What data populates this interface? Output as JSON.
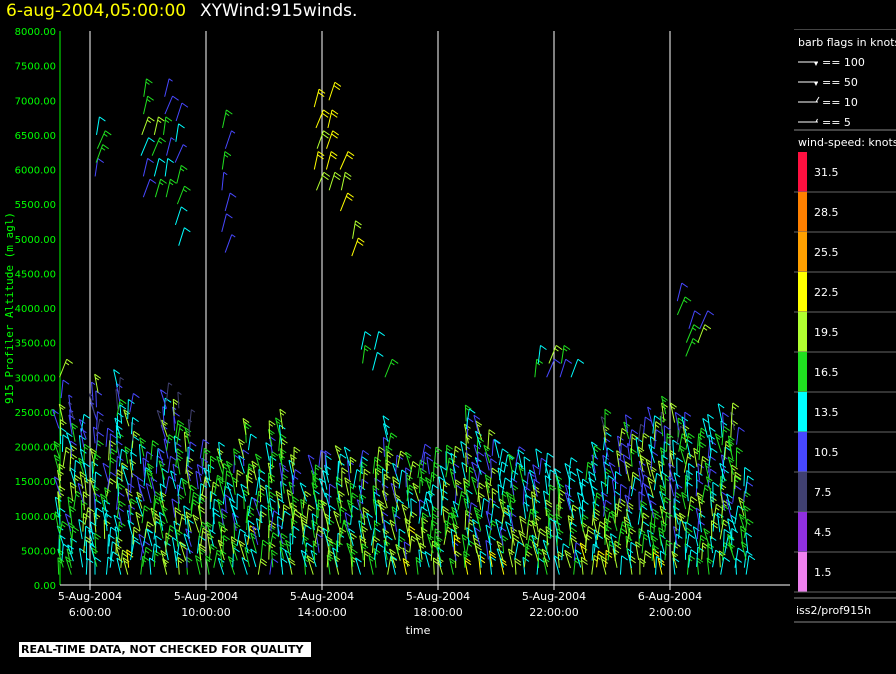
{
  "header": {
    "date": "6-aug-2004,05:00:00",
    "title": "XYWind:915winds."
  },
  "footer": {
    "notice": "REAL-TIME DATA, NOT CHECKED FOR QUALITY"
  },
  "legend": {
    "barb_title": "barb flags in knots",
    "barbs": [
      "== 100",
      "== 50",
      "== 10",
      "== 5"
    ],
    "speed_title": "wind-speed: knots",
    "bins": [
      {
        "label": "31.5",
        "color": "#ff1040"
      },
      {
        "label": "28.5",
        "color": "#ff8000"
      },
      {
        "label": "25.5",
        "color": "#ffa000"
      },
      {
        "label": "22.5",
        "color": "#ffff00"
      },
      {
        "label": "19.5",
        "color": "#b0ff30"
      },
      {
        "label": "16.5",
        "color": "#20e020"
      },
      {
        "label": "13.5",
        "color": "#00ffff"
      },
      {
        "label": "10.5",
        "color": "#4848ff"
      },
      {
        "label": "7.5",
        "color": "#404070"
      },
      {
        "label": "4.5",
        "color": "#9030e0"
      },
      {
        "label": "1.5",
        "color": "#ee80ee"
      }
    ],
    "source": "iss2/prof915h"
  },
  "chart_data": {
    "type": "scatter",
    "subtype": "wind barbs (time-height)",
    "xlabel": "time",
    "ylabel": "915 Profiler Altitude (m agl)",
    "ylim": [
      0,
      8000
    ],
    "yticks": [
      "0.00",
      "500.00",
      "1000.00",
      "1500.00",
      "2000.00",
      "2500.00",
      "3000.00",
      "3500.00",
      "4000.00",
      "4500.00",
      "5000.00",
      "5500.00",
      "6000.00",
      "6500.00",
      "7000.00",
      "7500.00",
      "8000.00"
    ],
    "xticks": [
      {
        "t": 6,
        "line1": "5-Aug-2004",
        "line2": "6:00:00"
      },
      {
        "t": 10,
        "line1": "5-Aug-2004",
        "line2": "10:00:00"
      },
      {
        "t": 14,
        "line1": "5-Aug-2004",
        "line2": "14:00:00"
      },
      {
        "t": 18,
        "line1": "5-Aug-2004",
        "line2": "18:00:00"
      },
      {
        "t": 22,
        "line1": "5-Aug-2004",
        "line2": "22:00:00"
      },
      {
        "t": 26,
        "line1": "6-Aug-2004",
        "line2": "2:00:00"
      }
    ],
    "xlim_hours_since_0000_5aug": [
      4.95,
      29.0
    ],
    "grid": "vertical lines at x ticks",
    "series": [
      {
        "time_h": 5.0,
        "top_m": 2400,
        "upper": [
          2700,
          3000
        ]
      },
      {
        "time_h": 5.4,
        "top_m": 2500,
        "upper": []
      },
      {
        "time_h": 5.8,
        "top_m": 2250,
        "upper": []
      },
      {
        "time_h": 6.2,
        "top_m": 2800,
        "upper": [
          5900,
          6100,
          6300,
          6500
        ]
      },
      {
        "time_h": 6.6,
        "top_m": 2000,
        "upper": []
      },
      {
        "time_h": 7.0,
        "top_m": 2950,
        "upper": []
      },
      {
        "time_h": 7.4,
        "top_m": 2600,
        "upper": []
      },
      {
        "time_h": 7.8,
        "top_m": 1900,
        "upper": [
          5600,
          5900,
          6200,
          6500,
          6800,
          7050
        ]
      },
      {
        "time_h": 8.2,
        "top_m": 1900,
        "upper": [
          5600,
          5900,
          6200,
          6500
        ]
      },
      {
        "time_h": 8.6,
        "top_m": 2700,
        "upper": [
          5600,
          5900,
          6200,
          6500,
          6800,
          7050
        ]
      },
      {
        "time_h": 9.0,
        "top_m": 2600,
        "upper": [
          4900,
          5200,
          5500,
          5800,
          6100,
          6400,
          6700
        ]
      },
      {
        "time_h": 9.4,
        "top_m": 2300,
        "upper": []
      },
      {
        "time_h": 9.8,
        "top_m": 1900,
        "upper": []
      },
      {
        "time_h": 10.2,
        "top_m": 1700,
        "upper": []
      },
      {
        "time_h": 10.6,
        "top_m": 1900,
        "upper": [
          4800,
          5100,
          5400,
          5700,
          6000,
          6300,
          6600
        ]
      },
      {
        "time_h": 11.0,
        "top_m": 1800,
        "upper": []
      },
      {
        "time_h": 11.4,
        "top_m": 2200,
        "upper": []
      },
      {
        "time_h": 11.8,
        "top_m": 1700,
        "upper": []
      },
      {
        "time_h": 12.2,
        "top_m": 2200,
        "upper": []
      },
      {
        "time_h": 12.6,
        "top_m": 2300,
        "upper": []
      },
      {
        "time_h": 13.0,
        "top_m": 1800,
        "upper": []
      },
      {
        "time_h": 13.4,
        "top_m": 1300,
        "upper": []
      },
      {
        "time_h": 13.8,
        "top_m": 1800,
        "upper": [
          5700,
          6000,
          6300,
          6600,
          6900
        ]
      },
      {
        "time_h": 14.2,
        "top_m": 1700,
        "upper": [
          5700,
          6000,
          6300,
          6600,
          7000
        ]
      },
      {
        "time_h": 14.6,
        "top_m": 1800,
        "upper": [
          5400,
          5700,
          6000
        ]
      },
      {
        "time_h": 15.0,
        "top_m": 1800,
        "upper": [
          4750,
          5000
        ]
      },
      {
        "time_h": 15.4,
        "top_m": 1800,
        "upper": [
          3200,
          3400
        ]
      },
      {
        "time_h": 15.8,
        "top_m": 1800,
        "upper": [
          3100,
          3400
        ]
      },
      {
        "time_h": 16.2,
        "top_m": 2200,
        "upper": [
          3000
        ]
      },
      {
        "time_h": 16.6,
        "top_m": 1800,
        "upper": []
      },
      {
        "time_h": 17.0,
        "top_m": 1700,
        "upper": []
      },
      {
        "time_h": 17.4,
        "top_m": 1800,
        "upper": []
      },
      {
        "time_h": 17.8,
        "top_m": 1800,
        "upper": []
      },
      {
        "time_h": 18.2,
        "top_m": 1800,
        "upper": []
      },
      {
        "time_h": 18.6,
        "top_m": 1800,
        "upper": []
      },
      {
        "time_h": 19.0,
        "top_m": 2400,
        "upper": []
      },
      {
        "time_h": 19.4,
        "top_m": 2200,
        "upper": []
      },
      {
        "time_h": 19.8,
        "top_m": 2000,
        "upper": []
      },
      {
        "time_h": 20.2,
        "top_m": 1900,
        "upper": []
      },
      {
        "time_h": 20.6,
        "top_m": 1800,
        "upper": []
      },
      {
        "time_h": 21.0,
        "top_m": 1700,
        "upper": []
      },
      {
        "time_h": 21.4,
        "top_m": 1800,
        "upper": [
          3000,
          3200
        ]
      },
      {
        "time_h": 21.8,
        "top_m": 1700,
        "upper": [
          3000,
          3200
        ]
      },
      {
        "time_h": 22.2,
        "top_m": 1500,
        "upper": [
          3000,
          3200
        ]
      },
      {
        "time_h": 22.6,
        "top_m": 1700,
        "upper": [
          3000
        ]
      },
      {
        "time_h": 23.0,
        "top_m": 1600,
        "upper": []
      },
      {
        "time_h": 23.4,
        "top_m": 1900,
        "upper": []
      },
      {
        "time_h": 23.8,
        "top_m": 2300,
        "upper": []
      },
      {
        "time_h": 24.2,
        "top_m": 2100,
        "upper": []
      },
      {
        "time_h": 24.6,
        "top_m": 2300,
        "upper": []
      },
      {
        "time_h": 25.0,
        "top_m": 2200,
        "upper": []
      },
      {
        "time_h": 25.4,
        "top_m": 2400,
        "upper": []
      },
      {
        "time_h": 25.8,
        "top_m": 2500,
        "upper": []
      },
      {
        "time_h": 26.2,
        "top_m": 2400,
        "upper": [
          3900,
          4100
        ]
      },
      {
        "time_h": 26.6,
        "top_m": 2300,
        "upper": [
          3300,
          3500,
          3700
        ]
      },
      {
        "time_h": 27.0,
        "top_m": 2100,
        "upper": [
          3500,
          3700
        ]
      },
      {
        "time_h": 27.4,
        "top_m": 2300,
        "upper": []
      },
      {
        "time_h": 27.8,
        "top_m": 2400,
        "upper": []
      },
      {
        "time_h": 28.2,
        "top_m": 2400,
        "upper": []
      },
      {
        "time_h": 28.6,
        "top_m": 1500,
        "upper": []
      }
    ]
  }
}
